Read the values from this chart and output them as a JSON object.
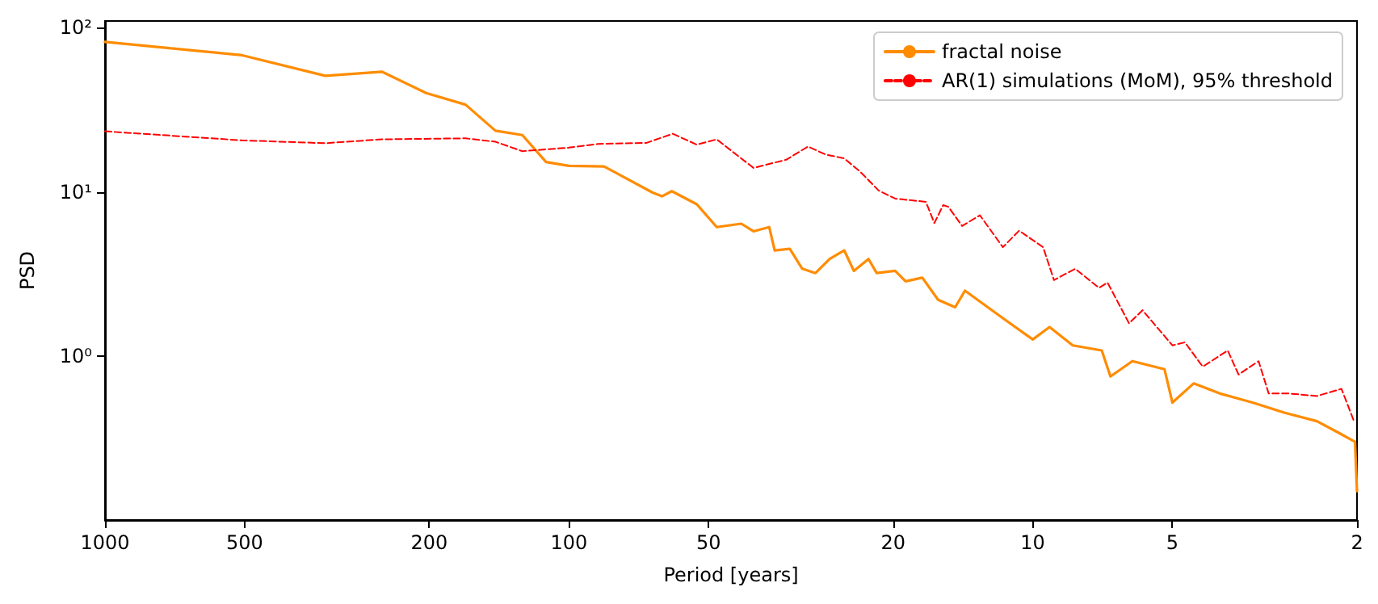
{
  "chart_data": {
    "type": "line",
    "xlabel": "Period [years]",
    "ylabel": "PSD",
    "log": "xy",
    "grid": false,
    "legend": "top right",
    "marker": "none",
    "xlim": [
      1000,
      2
    ],
    "xticks": [
      1000,
      500,
      200,
      100,
      50,
      20,
      10,
      5,
      2
    ],
    "ylim": [
      0.1,
      110
    ],
    "yticks": [
      {
        "value": 1,
        "label": "10⁰"
      },
      {
        "value": 10,
        "label": "10¹"
      },
      {
        "value": 100,
        "label": "10²"
      }
    ],
    "series": [
      {
        "name": "fractal noise",
        "color": "#ff8c00",
        "line_style": "solid",
        "x": [
          1000,
          506,
          335,
          253,
          203,
          167,
          144,
          126,
          112,
          100,
          84,
          66,
          63,
          60,
          53,
          48,
          42.5,
          40,
          37,
          36,
          33.4,
          31.4,
          29.4,
          27.4,
          25.5,
          24.3,
          22.6,
          21.7,
          19.8,
          18.8,
          17.3,
          16,
          14.7,
          14,
          11.6,
          10,
          9.2,
          8.2,
          7.1,
          6.8,
          6.1,
          5.2,
          5,
          4.5,
          3.95,
          3.36,
          2.86,
          2.44,
          2.19,
          2.02,
          2
        ],
        "values": [
          82,
          68,
          51,
          54,
          40,
          34,
          23.6,
          22.2,
          15.2,
          14.4,
          14.3,
          9.9,
          9.4,
          10.1,
          8.4,
          6.1,
          6.4,
          5.75,
          6.1,
          4.4,
          4.5,
          3.4,
          3.2,
          3.9,
          4.4,
          3.3,
          3.9,
          3.2,
          3.3,
          2.85,
          3,
          2.2,
          1.98,
          2.5,
          1.7,
          1.26,
          1.5,
          1.16,
          1.08,
          0.75,
          0.93,
          0.83,
          0.52,
          0.68,
          0.59,
          0.52,
          0.45,
          0.4,
          0.34,
          0.3,
          0.15
        ]
      },
      {
        "name": "AR(1) simulations (MoM), 95% threshold",
        "color": "#ff0000",
        "line_style": "dashed",
        "x": [
          1000,
          506,
          335,
          253,
          167,
          144,
          126,
          100,
          86.5,
          68,
          59.7,
          53,
          48,
          43.6,
          40,
          34,
          30.5,
          28,
          25.5,
          23.5,
          21.5,
          19.8,
          17,
          16.3,
          15.6,
          15.2,
          14.2,
          13,
          11.6,
          10.7,
          9.5,
          9,
          8.1,
          7.2,
          6.9,
          6.2,
          5.8,
          5,
          4.7,
          4.3,
          3.8,
          3.6,
          3.26,
          3.1,
          2.8,
          2.44,
          2.16,
          2.03
        ],
        "values": [
          23.4,
          20.6,
          19.8,
          20.9,
          21.2,
          20.2,
          17.7,
          18.6,
          19.6,
          19.9,
          22.6,
          19.4,
          20.9,
          16.9,
          14,
          15.7,
          18.9,
          16.9,
          16,
          13.2,
          10.2,
          9.1,
          8.7,
          6.45,
          8.3,
          8.1,
          6.2,
          7.2,
          4.6,
          5.8,
          4.6,
          2.9,
          3.4,
          2.6,
          2.8,
          1.58,
          1.9,
          1.16,
          1.21,
          0.86,
          1.08,
          0.77,
          0.93,
          0.59,
          0.59,
          0.57,
          0.63,
          0.4
        ]
      }
    ]
  }
}
